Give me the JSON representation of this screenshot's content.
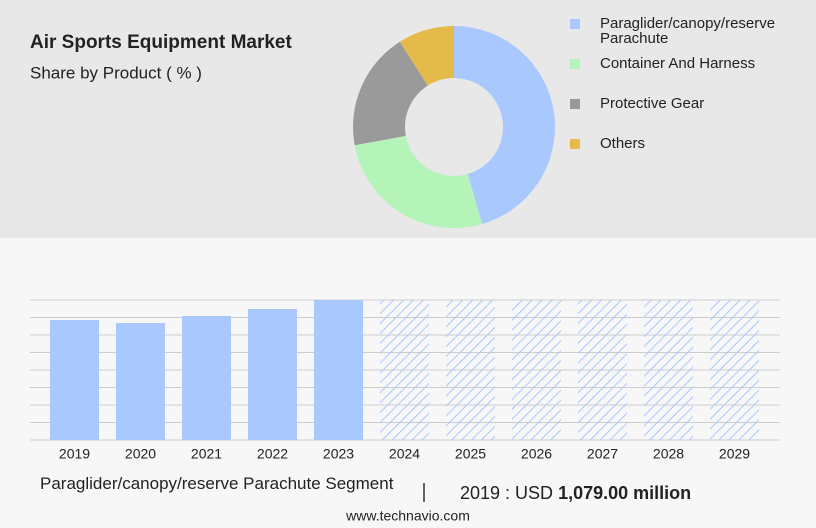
{
  "chart_data": [
    {
      "type": "donut",
      "title": "Air Sports Equipment Market",
      "subtitle": "Share by Product ( % )",
      "categories": [
        "Paraglider/canopy/reserve Parachute",
        "Container And Harness",
        "Protective Gear",
        "Others"
      ],
      "values": [
        45.5,
        26.6,
        18.9,
        9
      ],
      "colors": [
        "#a8c8fe",
        "#b5f4b9",
        "#9a9a9a",
        "#e4bb4a"
      ]
    },
    {
      "type": "bar",
      "title": "Paraglider/canopy/reserve Parachute Segment",
      "categories": [
        "2019",
        "2020",
        "2021",
        "2022",
        "2023",
        "2024",
        "2025",
        "2026",
        "2027",
        "2028",
        "2029"
      ],
      "values": [
        1079,
        1052,
        1115,
        1178,
        1259,
        null,
        null,
        null,
        null,
        null,
        null
      ],
      "value_labels": [
        "1,079.00 million",
        null,
        null,
        null,
        null,
        null,
        null,
        null,
        null,
        null,
        null
      ],
      "value_prefix": "2019 : USD",
      "color": "#a8c8fe",
      "ylim": [
        0,
        1259
      ]
    }
  ],
  "source": "www.technavio.com"
}
